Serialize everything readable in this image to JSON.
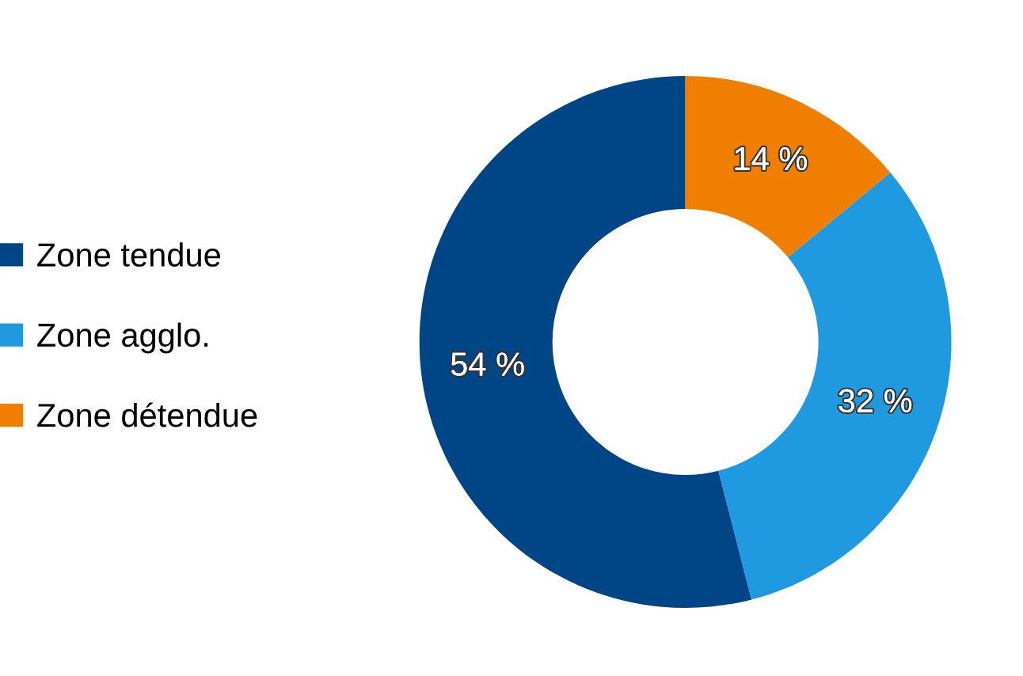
{
  "chart_data": {
    "type": "donut",
    "categories": [
      "Zone tendue",
      "Zone agglo.",
      "Zone détendue"
    ],
    "values": [
      54,
      32,
      14
    ],
    "value_labels": [
      "54 %",
      "32 %",
      "14 %"
    ],
    "colors": [
      "#004586",
      "#1f9ae0",
      "#f07f00"
    ],
    "legend": "left"
  }
}
